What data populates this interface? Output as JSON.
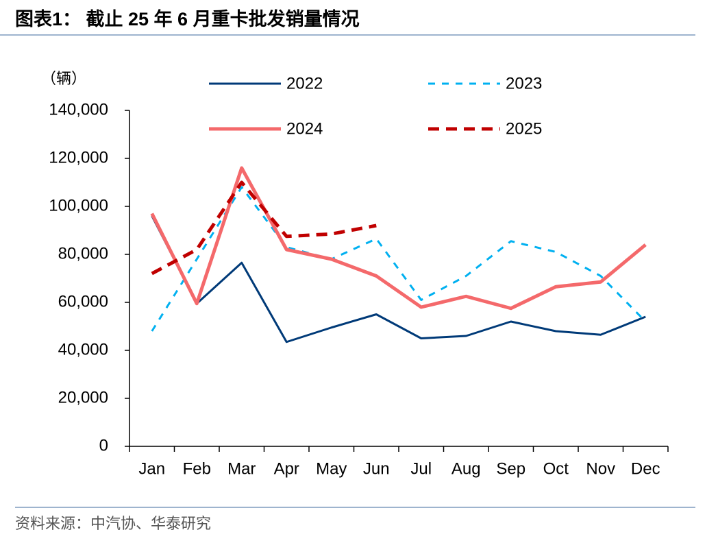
{
  "chart_data": {
    "type": "line",
    "title": "图表1：  截止 25 年 6 月重卡批发销量情况",
    "y_label": "（辆）",
    "source": "资料来源：中汽协、华泰研究",
    "categories": [
      "Jan",
      "Feb",
      "Mar",
      "Apr",
      "May",
      "Jun",
      "Jul",
      "Aug",
      "Sep",
      "Oct",
      "Nov",
      "Dec"
    ],
    "series": [
      {
        "name": "2022",
        "color": "#003a78",
        "dash": false,
        "width": 3,
        "values": [
          96000,
          59500,
          76500,
          43500,
          49500,
          55000,
          45000,
          46000,
          52000,
          48000,
          46500,
          54000
        ]
      },
      {
        "name": "2023",
        "color": "#00b0f0",
        "dash": true,
        "width": 3,
        "values": [
          48000,
          78000,
          108000,
          83000,
          78000,
          86500,
          61000,
          71000,
          85500,
          81000,
          71000,
          52000
        ]
      },
      {
        "name": "2024",
        "color": "#f4696b",
        "dash": false,
        "width": 5,
        "values": [
          97000,
          59500,
          116000,
          82000,
          78000,
          71000,
          58000,
          62500,
          57500,
          66500,
          68500,
          84000
        ]
      },
      {
        "name": "2025",
        "color": "#c00000",
        "dash": true,
        "width": 5,
        "values": [
          72000,
          82000,
          110000,
          87500,
          88500,
          92000,
          null,
          null,
          null,
          null,
          null,
          null
        ]
      }
    ],
    "ylim": [
      0,
      140000
    ],
    "yticks": [
      0,
      {
        "value": 20000,
        "label": "20,000"
      },
      {
        "value": 40000,
        "label": "40,000"
      },
      {
        "value": 60000,
        "label": "60,000"
      },
      {
        "value": 80000,
        "label": "80,000"
      },
      {
        "value": 100000,
        "label": "100,000"
      },
      {
        "value": 120000,
        "label": "120,000"
      },
      {
        "value": 140000,
        "label": "140,000"
      }
    ],
    "grid": false
  }
}
